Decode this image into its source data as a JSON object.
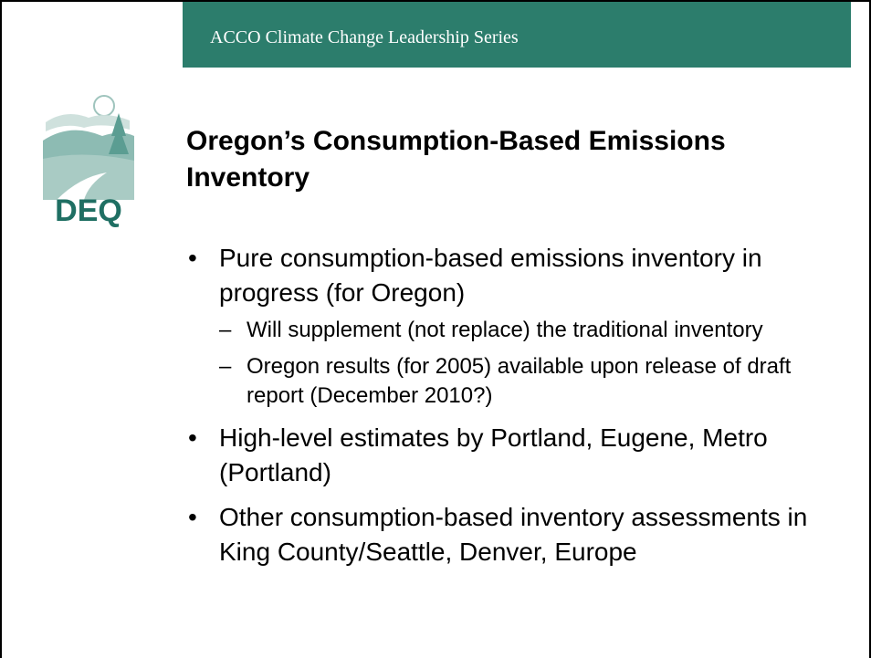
{
  "header": {
    "title": "ACCO Climate Change Leadership Series"
  },
  "logo": {
    "label": "DEQ"
  },
  "slide": {
    "title": "Oregon’s Consumption-Based Emissions Inventory",
    "bullets": [
      {
        "text": "Pure consumption-based emissions inventory in progress (for Oregon)",
        "sub": [
          "Will supplement (not replace) the traditional inventory",
          "Oregon results (for 2005) available upon release of draft report (December 2010?)"
        ]
      },
      {
        "text": "High-level estimates by Portland, Eugene, Metro (Portland)"
      },
      {
        "text": "Other consumption-based inventory assessments in King County/Seattle, Denver, Europe"
      }
    ]
  }
}
